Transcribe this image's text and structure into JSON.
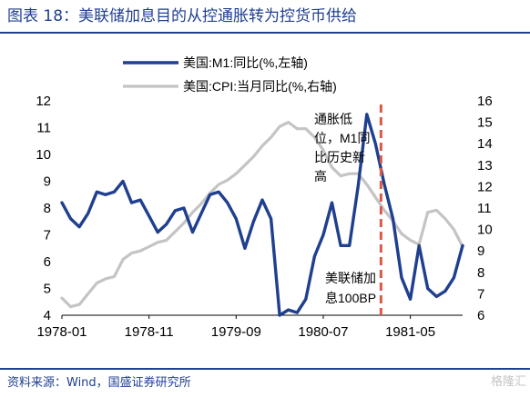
{
  "header": {
    "title": "图表 18：美联储加息目的从控通胀转为控货币供给"
  },
  "footer": {
    "source": "资料来源：Wind，国盛证券研究所",
    "watermark": "格隆汇"
  },
  "colors": {
    "m1": "#1f3f8f",
    "cpi": "#c4c4c4",
    "vline": "#d85a47",
    "brand": "#1f3f8f"
  },
  "chart_data": {
    "type": "line",
    "x_ticks": [
      "1978-01",
      "1978-11",
      "1979-09",
      "1980-07",
      "1981-05"
    ],
    "y_left": {
      "ticks": [
        "4",
        "5",
        "6",
        "7",
        "8",
        "9",
        "10",
        "11",
        "12"
      ],
      "lim": [
        4,
        12
      ]
    },
    "y_right": {
      "ticks": [
        "6",
        "7",
        "8",
        "9",
        "10",
        "11",
        "12",
        "13",
        "14",
        "15",
        "16"
      ],
      "lim": [
        6,
        16
      ]
    },
    "legend": {
      "placement": "top"
    },
    "series": [
      {
        "name": "美国:M1:同比(%,左轴)",
        "axis": "left",
        "x": [
          "1978-01",
          "1978-02",
          "1978-03",
          "1978-04",
          "1978-05",
          "1978-06",
          "1978-07",
          "1978-08",
          "1978-09",
          "1978-10",
          "1978-11",
          "1978-12",
          "1979-01",
          "1979-02",
          "1979-03",
          "1979-04",
          "1979-05",
          "1979-06",
          "1979-07",
          "1979-08",
          "1979-09",
          "1979-10",
          "1979-11",
          "1979-12",
          "1980-01",
          "1980-02",
          "1980-03",
          "1980-04",
          "1980-05",
          "1980-06",
          "1980-07",
          "1980-08",
          "1980-09",
          "1980-10",
          "1980-11",
          "1980-12",
          "1981-01",
          "1981-02",
          "1981-03",
          "1981-04",
          "1981-05",
          "1981-06",
          "1981-07",
          "1981-08",
          "1981-09",
          "1981-10",
          "1981-11"
        ],
        "values": [
          8.2,
          7.6,
          7.3,
          7.8,
          8.6,
          8.5,
          8.6,
          9.0,
          8.2,
          8.3,
          7.7,
          7.1,
          7.4,
          7.9,
          8.0,
          7.1,
          7.8,
          8.5,
          8.6,
          8.2,
          7.6,
          6.5,
          7.5,
          8.3,
          7.6,
          4.0,
          4.2,
          4.1,
          4.6,
          6.2,
          7.0,
          8.2,
          6.6,
          6.6,
          8.8,
          11.5,
          10.4,
          8.9,
          7.6,
          5.4,
          4.6,
          6.6,
          5.0,
          4.7,
          4.9,
          5.4,
          6.6
        ],
        "annotation": "美联储加\n息100BP"
      },
      {
        "name": "美国:CPI:当月同比(%,右轴)",
        "axis": "right",
        "x": [
          "1978-01",
          "1978-02",
          "1978-03",
          "1978-04",
          "1978-05",
          "1978-06",
          "1978-07",
          "1978-08",
          "1978-09",
          "1978-10",
          "1978-11",
          "1978-12",
          "1979-01",
          "1979-02",
          "1979-03",
          "1979-04",
          "1979-05",
          "1979-06",
          "1979-07",
          "1979-08",
          "1979-09",
          "1979-10",
          "1979-11",
          "1979-12",
          "1980-01",
          "1980-02",
          "1980-03",
          "1980-04",
          "1980-05",
          "1980-06",
          "1980-07",
          "1980-08",
          "1980-09",
          "1980-10",
          "1980-11",
          "1980-12",
          "1981-01",
          "1981-02",
          "1981-03",
          "1981-04",
          "1981-05",
          "1981-06",
          "1981-07",
          "1981-08",
          "1981-09",
          "1981-10",
          "1981-11"
        ],
        "values": [
          6.8,
          6.4,
          6.5,
          7.0,
          7.5,
          7.7,
          7.8,
          8.6,
          8.9,
          9.0,
          9.2,
          9.4,
          9.5,
          9.9,
          10.3,
          10.8,
          11.2,
          11.7,
          12.1,
          12.3,
          12.6,
          13.0,
          13.4,
          13.9,
          14.3,
          14.8,
          15.0,
          14.7,
          14.7,
          14.3,
          13.7,
          12.9,
          12.5,
          12.6,
          12.6,
          12.1,
          11.5,
          10.9,
          10.4,
          9.8,
          9.5,
          9.3,
          10.8,
          10.9,
          10.5,
          10.0,
          9.2
        ],
        "annotation": "通胀低\n位，M1同\n比历史新\n高"
      }
    ],
    "marker": {
      "x": "1981-01",
      "style": "dashed"
    }
  }
}
